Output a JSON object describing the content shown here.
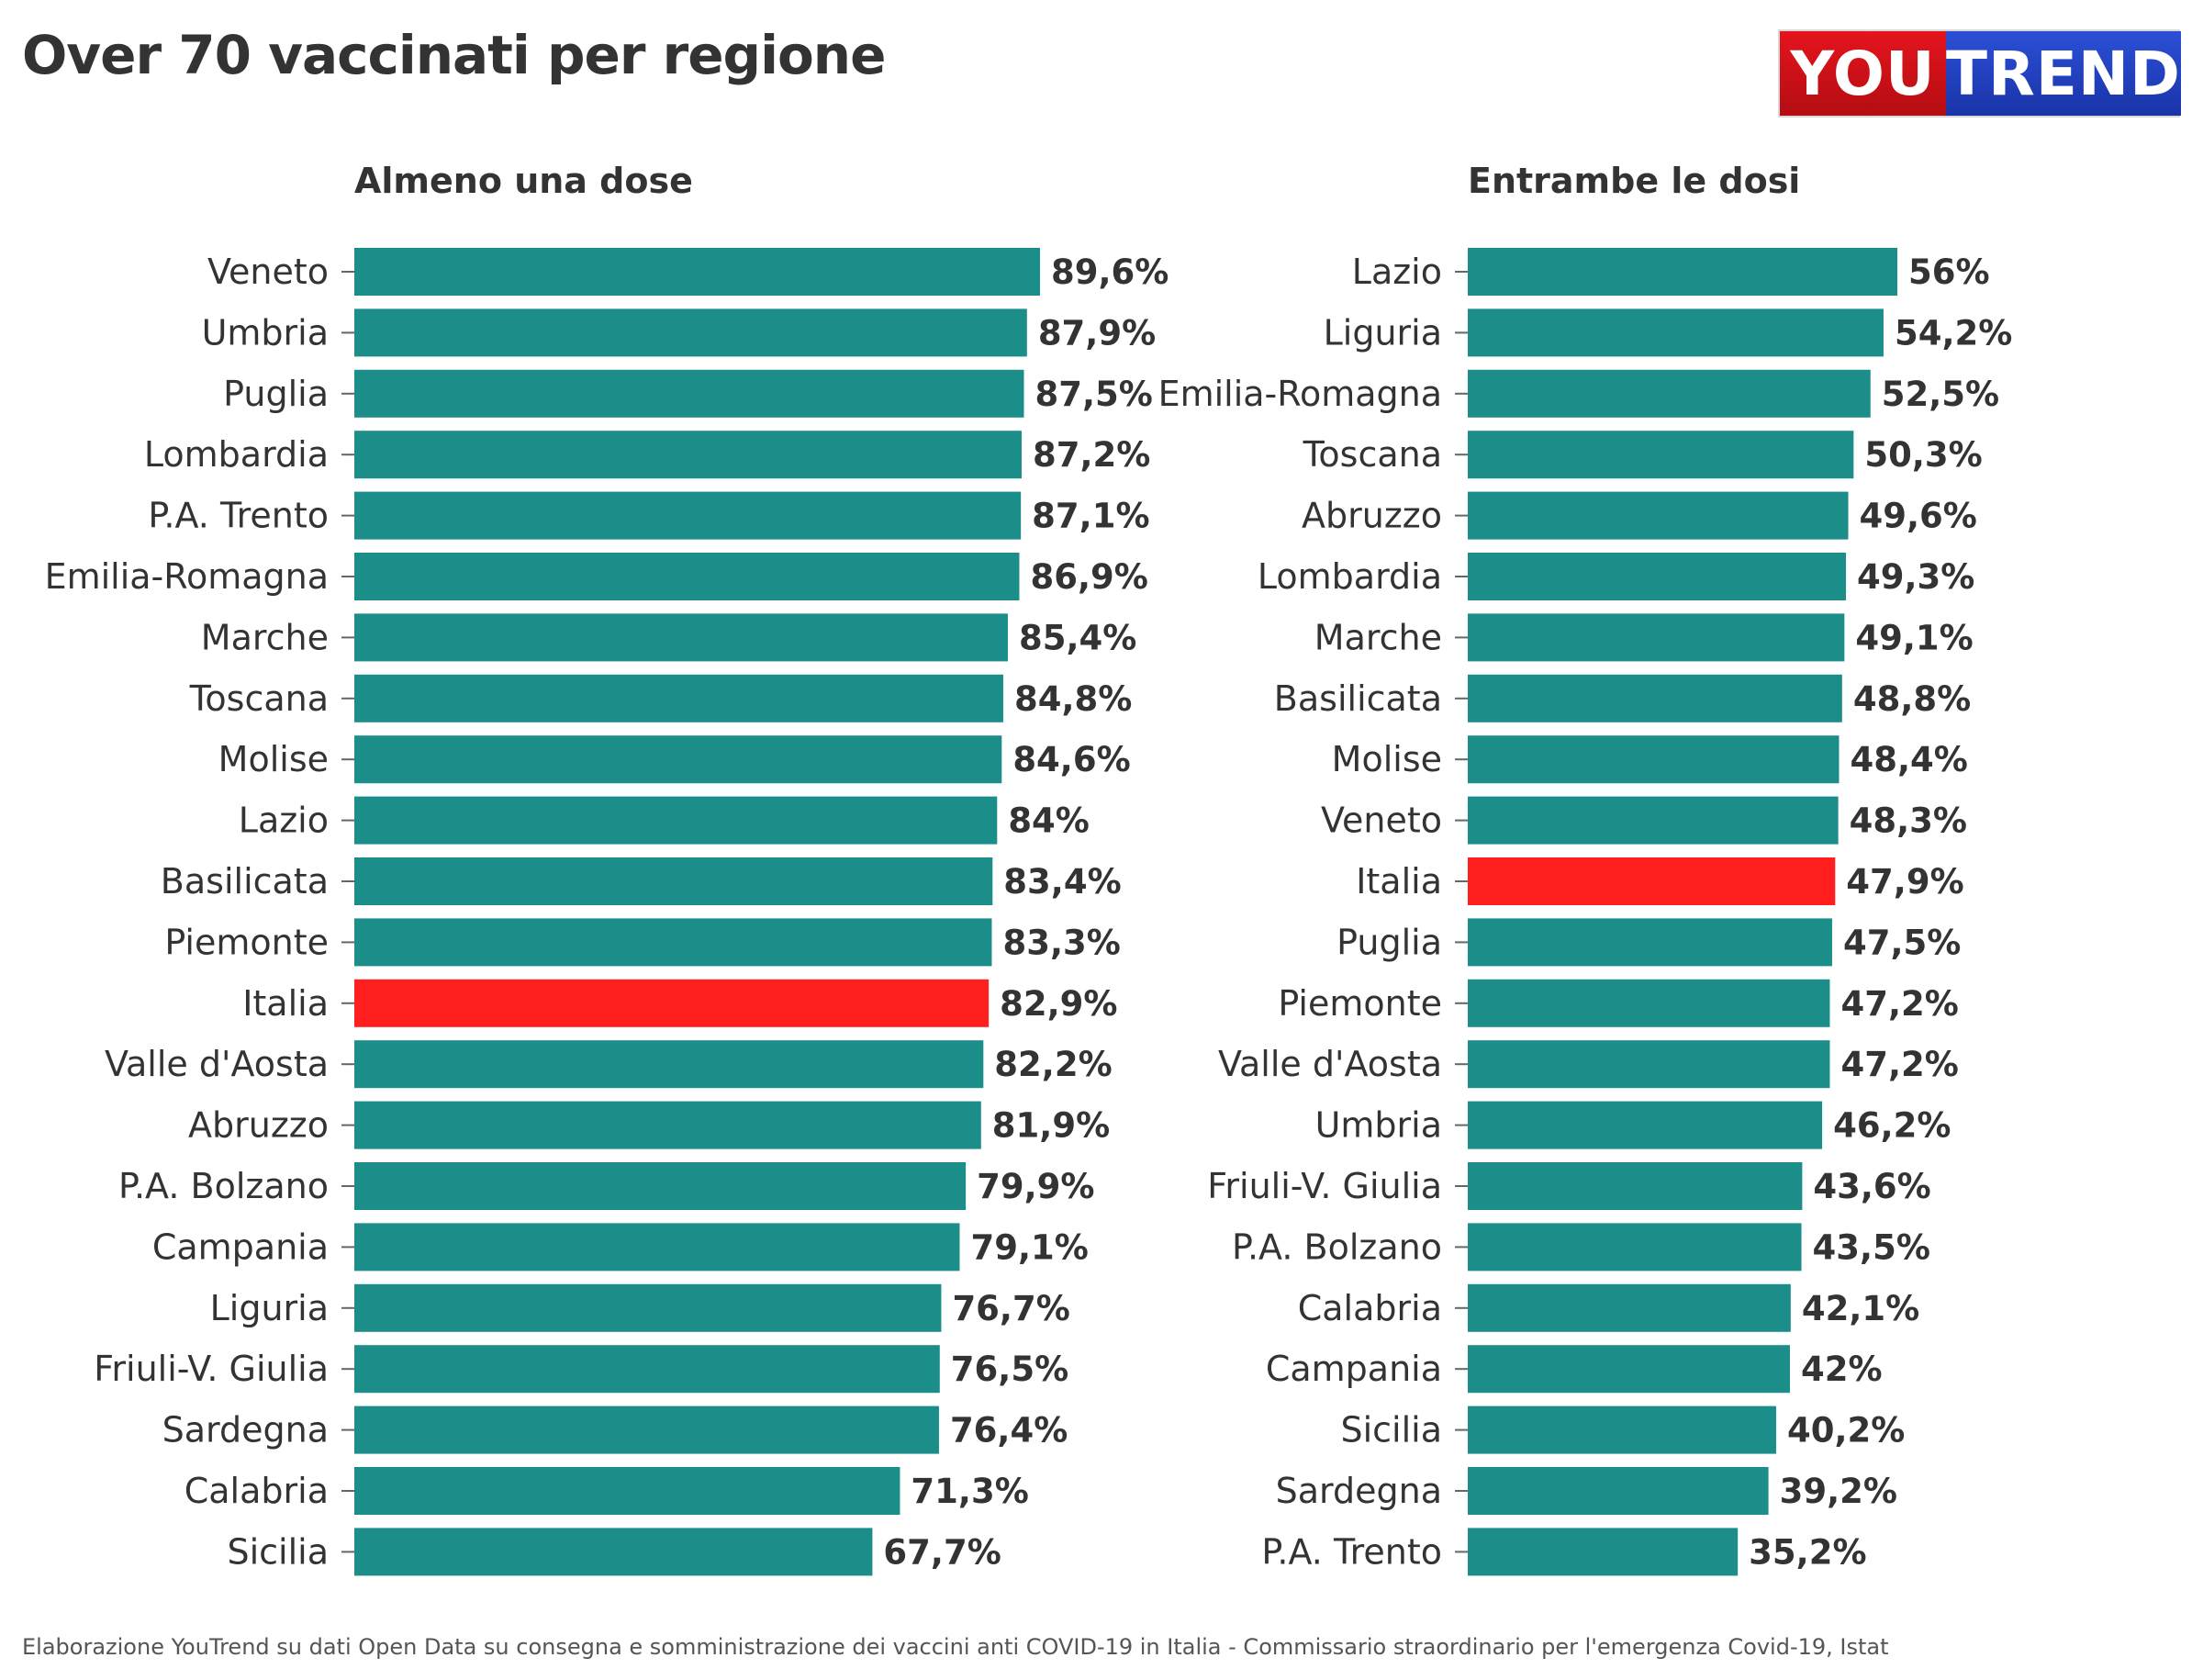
{
  "title": "Over 70 vaccinati per regione",
  "logo": {
    "part1": "YOU",
    "part2": "TREND"
  },
  "source": "Elaborazione YouTrend su dati Open Data su consegna e somministrazione dei vaccini anti COVID-19 in Italia - Commissario straordinario per l'emergenza Covid-19, Istat",
  "colors": {
    "bar": "#1c8e8a",
    "highlight": "#ff1f1f",
    "text": "#333333"
  },
  "chart_data": [
    {
      "type": "bar",
      "orientation": "horizontal",
      "title": "Almeno una dose",
      "highlight": "Italia",
      "categories": [
        "Veneto",
        "Umbria",
        "Puglia",
        "Lombardia",
        "P.A. Trento",
        "Emilia-Romagna",
        "Marche",
        "Toscana",
        "Molise",
        "Lazio",
        "Basilicata",
        "Piemonte",
        "Italia",
        "Valle d'Aosta",
        "Abruzzo",
        "P.A. Bolzano",
        "Campania",
        "Liguria",
        "Friuli-V. Giulia",
        "Sardegna",
        "Calabria",
        "Sicilia"
      ],
      "values": [
        89.6,
        87.9,
        87.5,
        87.2,
        87.1,
        86.9,
        85.4,
        84.8,
        84.6,
        84,
        83.4,
        83.3,
        82.9,
        82.2,
        81.9,
        79.9,
        79.1,
        76.7,
        76.5,
        76.4,
        71.3,
        67.7
      ],
      "labels": [
        "89,6%",
        "87,9%",
        "87,5%",
        "87,2%",
        "87,1%",
        "86,9%",
        "85,4%",
        "84,8%",
        "84,6%",
        "84%",
        "83,4%",
        "83,3%",
        "82,9%",
        "82,2%",
        "81,9%",
        "79,9%",
        "79,1%",
        "76,7%",
        "76,5%",
        "76,4%",
        "71,3%",
        "67,7%"
      ],
      "xlim": [
        0,
        89.6
      ]
    },
    {
      "type": "bar",
      "orientation": "horizontal",
      "title": "Entrambe le dosi",
      "highlight": "Italia",
      "categories": [
        "Lazio",
        "Liguria",
        "Emilia-Romagna",
        "Toscana",
        "Abruzzo",
        "Lombardia",
        "Marche",
        "Basilicata",
        "Molise",
        "Veneto",
        "Italia",
        "Puglia",
        "Piemonte",
        "Valle d'Aosta",
        "Umbria",
        "Friuli-V. Giulia",
        "P.A. Bolzano",
        "Calabria",
        "Campania",
        "Sicilia",
        "Sardegna",
        "P.A. Trento"
      ],
      "values": [
        56,
        54.2,
        52.5,
        50.3,
        49.6,
        49.3,
        49.1,
        48.8,
        48.4,
        48.3,
        47.9,
        47.5,
        47.2,
        47.2,
        46.2,
        43.6,
        43.5,
        42.1,
        42,
        40.2,
        39.2,
        35.2
      ],
      "labels": [
        "56%",
        "54,2%",
        "52,5%",
        "50,3%",
        "49,6%",
        "49,3%",
        "49,1%",
        "48,8%",
        "48,4%",
        "48,3%",
        "47,9%",
        "47,5%",
        "47,2%",
        "47,2%",
        "46,2%",
        "43,6%",
        "43,5%",
        "42,1%",
        "42%",
        "40,2%",
        "39,2%",
        "35,2%"
      ],
      "xlim": [
        0,
        56
      ]
    }
  ]
}
